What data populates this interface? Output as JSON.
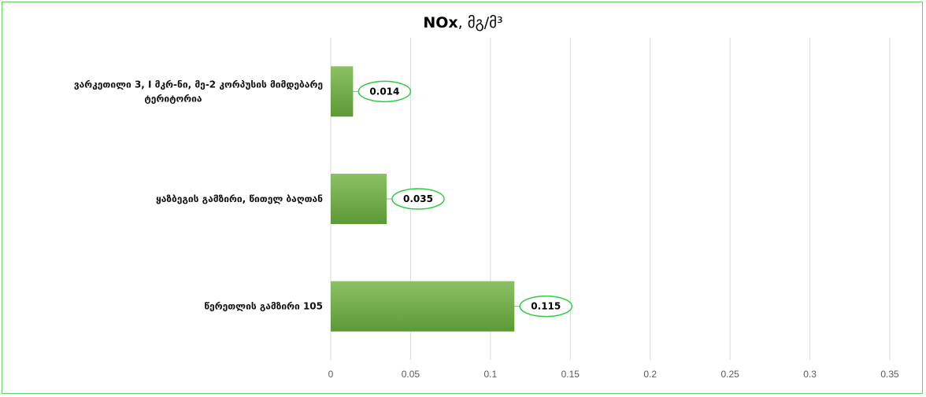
{
  "chart_data": {
    "type": "bar",
    "orientation": "horizontal",
    "title_main": "NOx",
    "title_unit": ", მგ/მ³",
    "categories": [
      [
        "ვარკეთილი 3, I მკრ-ნი, მე-2 კორპუსის მიმდებარე",
        "ტერიტორია"
      ],
      [
        "ყაზბეგის გამზირი, წითელ ბაღთან"
      ],
      [
        "წერეთლის გამზირი 105"
      ]
    ],
    "values": [
      0.014,
      0.035,
      0.115
    ],
    "value_labels": [
      "0.014",
      "0.035",
      "0.115"
    ],
    "xticks": [
      0,
      0.05,
      0.1,
      0.15,
      0.2,
      0.25,
      0.3,
      0.35
    ],
    "xtick_labels": [
      "0",
      "0.05",
      "0.1",
      "0.15",
      "0.2",
      "0.25",
      "0.3",
      "0.35"
    ],
    "xlim": [
      0,
      0.35
    ],
    "grid": "vertical",
    "legend": "none",
    "colors": {
      "bar_top": "#8cc063",
      "bar_bottom": "#5c9a35",
      "label_border": "#2ecc40",
      "frame_border": "#5fd35f",
      "gridline": "#d9d9d9"
    }
  }
}
